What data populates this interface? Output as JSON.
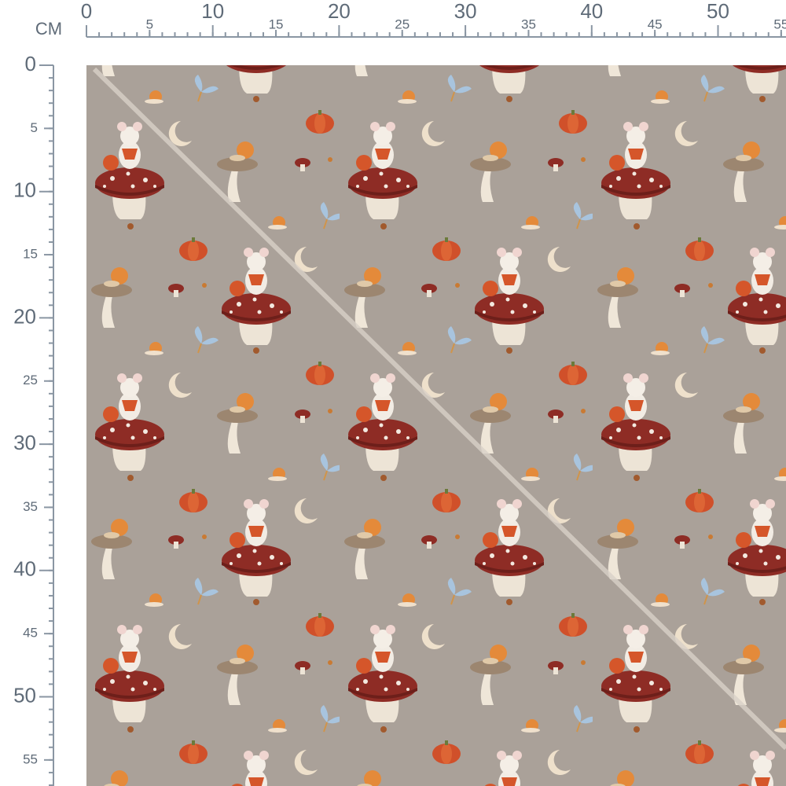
{
  "ruler": {
    "unit": "CM",
    "top_ticks": [
      0,
      5,
      10,
      15,
      20,
      25,
      30,
      35,
      40,
      45,
      50,
      55
    ],
    "left_ticks": [
      0,
      5,
      10,
      15,
      20,
      25,
      30,
      35,
      40,
      45,
      50,
      55
    ]
  }
}
